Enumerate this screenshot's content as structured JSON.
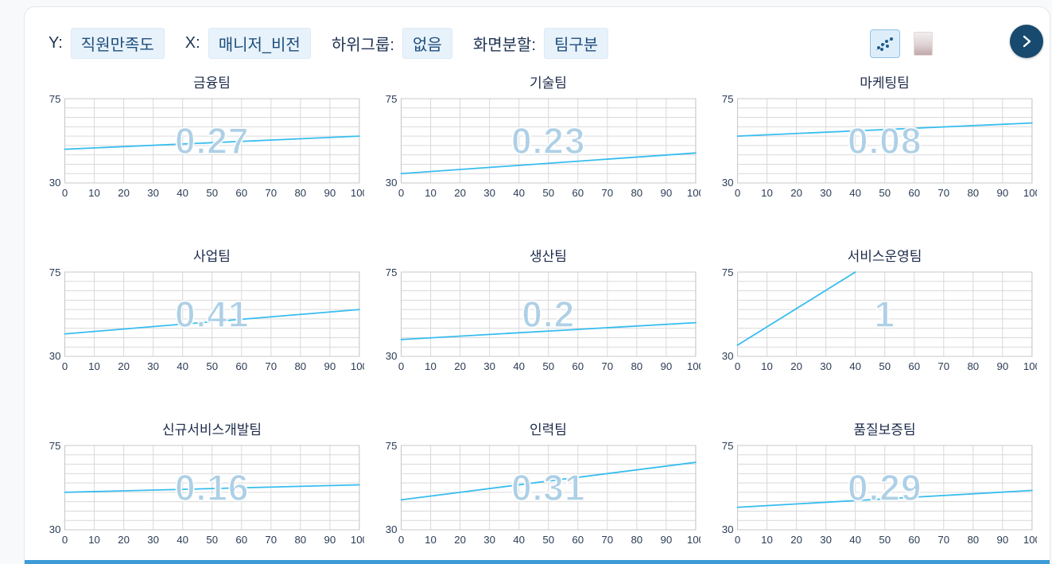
{
  "toolbar": {
    "y_label": "Y:",
    "y_value": "직원만족도",
    "x_label": "X:",
    "x_value": "매니저_비전",
    "subgroup_label": "하위그룹:",
    "subgroup_value": "없음",
    "split_label": "화면분할:",
    "split_value": "팀구분"
  },
  "colors": {
    "line": "#38bdef",
    "grid": "#d9d9d9",
    "plot_border": "#c8c8c8",
    "tick_text": "#2b3c55",
    "watermark": "#aed0e6",
    "accent_navy": "#174a6e",
    "bottom_bar": "#3d9bd6"
  },
  "chart_data": {
    "type": "line",
    "title": "",
    "xlabel": "",
    "ylabel": "",
    "xlim": [
      0,
      100
    ],
    "ylim": [
      30,
      75
    ],
    "x_ticks": [
      0,
      10,
      20,
      30,
      40,
      50,
      60,
      70,
      80,
      90,
      100
    ],
    "y_tick_labels": [
      "30",
      "75"
    ],
    "y_grid_step": 5,
    "grid": true,
    "legend": false,
    "charts": [
      {
        "title": "금융팀",
        "correlation": "0.27",
        "x": [
          0,
          100
        ],
        "y": [
          48,
          55
        ]
      },
      {
        "title": "기술팀",
        "correlation": "0.23",
        "x": [
          0,
          100
        ],
        "y": [
          35,
          46
        ]
      },
      {
        "title": "마케팅팀",
        "correlation": "0.08",
        "x": [
          0,
          100
        ],
        "y": [
          55,
          62
        ]
      },
      {
        "title": "사업팀",
        "correlation": "0.41",
        "x": [
          0,
          100
        ],
        "y": [
          42,
          55
        ]
      },
      {
        "title": "생산팀",
        "correlation": "0.2",
        "x": [
          0,
          100
        ],
        "y": [
          39,
          48
        ]
      },
      {
        "title": "서비스운영팀",
        "correlation": "1",
        "x": [
          0,
          40
        ],
        "y": [
          36,
          75
        ]
      },
      {
        "title": "신규서비스개발팀",
        "correlation": "0.16",
        "x": [
          0,
          100
        ],
        "y": [
          50,
          54
        ]
      },
      {
        "title": "인력팀",
        "correlation": "0.31",
        "x": [
          0,
          100
        ],
        "y": [
          46,
          66
        ]
      },
      {
        "title": "품질보증팀",
        "correlation": "0.29",
        "x": [
          0,
          100
        ],
        "y": [
          42,
          51
        ]
      }
    ]
  }
}
